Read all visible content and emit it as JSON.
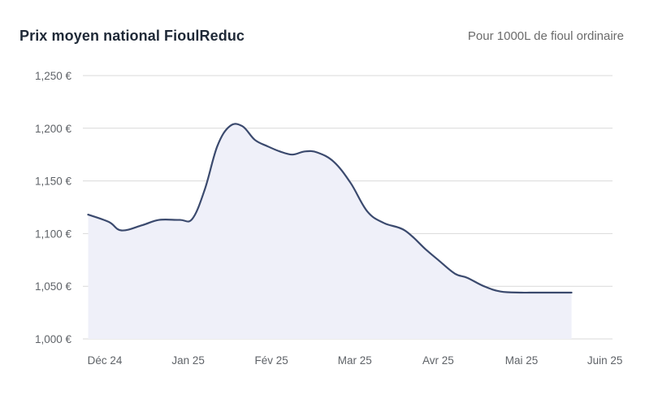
{
  "header": {
    "title": "Prix moyen national FioulReduc",
    "subtitle": "Pour 1000L de fioul ordinaire"
  },
  "colors": {
    "line": "#3b4a6e",
    "area": "#eff0f9",
    "grid": "#d9d9d9",
    "text": "#5f6368",
    "title": "#1f2937"
  },
  "chart_data": {
    "type": "area",
    "title": "Prix moyen national FioulReduc",
    "subtitle": "Pour 1000L de fioul ordinaire",
    "xlabel": "",
    "ylabel": "",
    "ylim": [
      0.995,
      1.26
    ],
    "yticks": [
      1.0,
      1.05,
      1.1,
      1.15,
      1.2,
      1.25
    ],
    "ytick_labels": [
      "1,000 €",
      "1,050 €",
      "1,100 €",
      "1,150 €",
      "1,200 €",
      "1,250 €"
    ],
    "xticks": [
      0,
      1,
      2,
      3,
      4,
      5,
      6
    ],
    "xtick_labels": [
      "Déc 24",
      "Jan 25",
      "Fév 25",
      "Mar 25",
      "Avr 25",
      "Mai 25",
      "Juin 25"
    ],
    "grid": true,
    "legend": "none",
    "series": [
      {
        "name": "Prix moyen national",
        "x": [
          -0.2,
          0.05,
          0.2,
          0.45,
          0.65,
          0.9,
          1.05,
          1.2,
          1.35,
          1.5,
          1.65,
          1.8,
          1.95,
          2.1,
          2.25,
          2.4,
          2.55,
          2.75,
          2.95,
          3.15,
          3.35,
          3.6,
          3.85,
          4.0,
          4.2,
          4.35,
          4.55,
          4.75,
          5.0,
          5.15,
          5.35,
          5.6
        ],
        "y": [
          1.118,
          1.111,
          1.103,
          1.108,
          1.113,
          1.113,
          1.114,
          1.142,
          1.183,
          1.202,
          1.202,
          1.189,
          1.183,
          1.178,
          1.175,
          1.178,
          1.177,
          1.168,
          1.148,
          1.121,
          1.11,
          1.103,
          1.085,
          1.075,
          1.062,
          1.058,
          1.05,
          1.045,
          1.044,
          1.044,
          1.044,
          1.044
        ]
      }
    ]
  }
}
